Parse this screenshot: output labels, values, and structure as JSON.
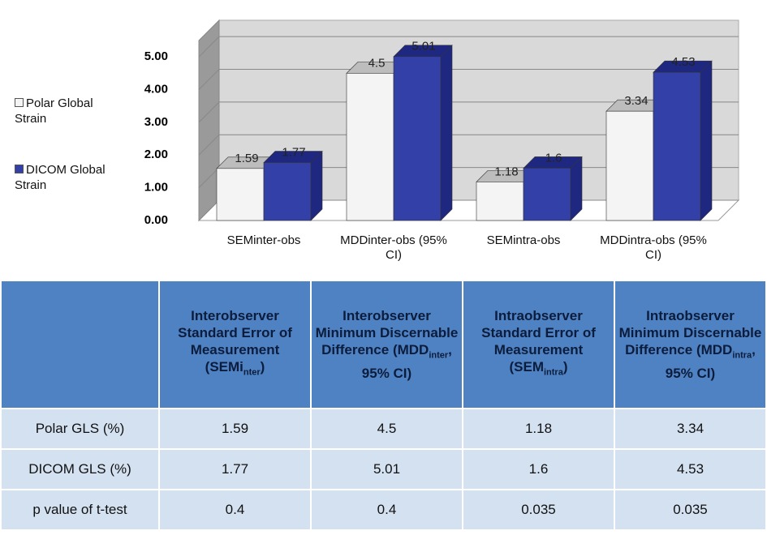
{
  "chart_data": {
    "type": "bar",
    "categories": [
      "SEMinter-obs",
      "MDDinter-obs (95% CI)",
      "SEMintra-obs",
      "MDDintra-obs (95% CI)"
    ],
    "series": [
      {
        "name": "Polar Global Strain",
        "color": "#f4f4f4",
        "values": [
          1.59,
          4.5,
          1.18,
          3.34
        ]
      },
      {
        "name": "DICOM Global Strain",
        "color": "#3340a8",
        "values": [
          1.77,
          5.01,
          1.6,
          4.53
        ]
      }
    ],
    "ylim": [
      0,
      5.5
    ],
    "yticks": [
      {
        "value": 0,
        "label": "0.00"
      },
      {
        "value": 1,
        "label": "1.00"
      },
      {
        "value": 2,
        "label": "2.00"
      },
      {
        "value": 3,
        "label": "3.00"
      },
      {
        "value": 4,
        "label": "4.00"
      },
      {
        "value": 5,
        "label": "5.00"
      }
    ],
    "grid": true,
    "legend": "left"
  },
  "table": {
    "header": [
      {
        "text": "Interobserver Standard Error of Measurement (SEMi",
        "sub": "nter",
        "tail": ")"
      },
      {
        "text": "Interobserver Minimum Discernable Difference (MDD",
        "sub": "inter",
        "tail": ", 95% CI)"
      },
      {
        "text": "Intraobserver Standard Error of Measurement (SEM",
        "sub": "intra",
        "tail": ")"
      },
      {
        "text": "Intraobserver Minimum Discernable Difference (MDD",
        "sub": "intra",
        "tail": ", 95% CI)"
      }
    ],
    "rows": [
      [
        "Polar GLS (%)",
        "1.59",
        "4.5",
        "1.18",
        "3.34"
      ],
      [
        "DICOM GLS (%)",
        "1.77",
        "5.01",
        "1.6",
        "4.53"
      ],
      [
        "p value of t-test",
        "0.4",
        "0.4",
        "0.035",
        "0.035"
      ]
    ]
  }
}
